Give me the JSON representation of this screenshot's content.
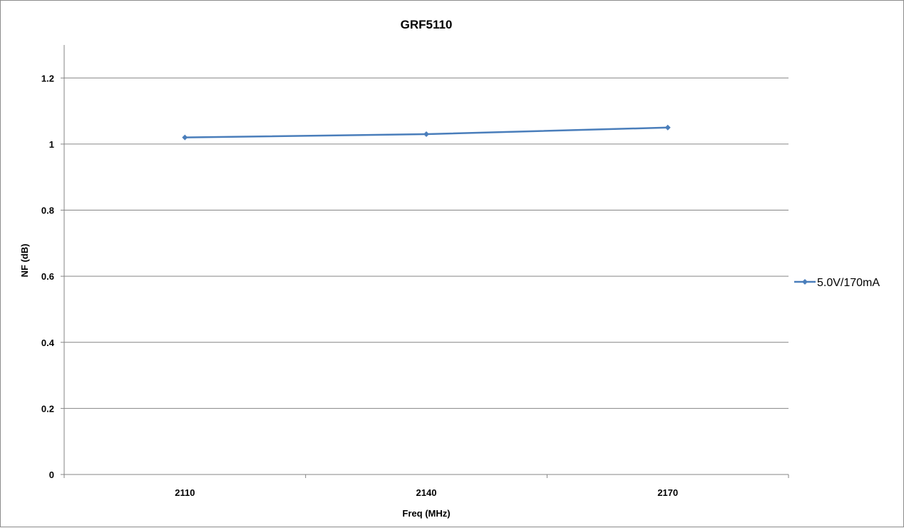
{
  "chart_data": {
    "type": "line",
    "title": "GRF5110",
    "xlabel": "Freq (MHz)",
    "ylabel": "NF (dB)",
    "categories": [
      "2110",
      "2140",
      "2170"
    ],
    "ylim": [
      0,
      1.2
    ],
    "yticks": [
      "0",
      "0.2",
      "0.4",
      "0.6",
      "0.8",
      "1",
      "1.2"
    ],
    "yticks_values": [
      0,
      0.2,
      0.4,
      0.6,
      0.8,
      1,
      1.2
    ],
    "grid": true,
    "legend_position": "right",
    "series": [
      {
        "name": "5.0V/170mA",
        "values": [
          1.02,
          1.03,
          1.05
        ],
        "color": "#4a7ebb",
        "marker": "diamond"
      }
    ]
  }
}
